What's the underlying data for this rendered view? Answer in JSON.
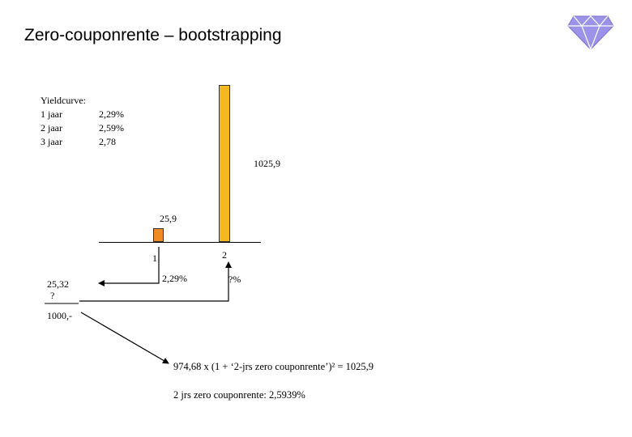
{
  "title": "Zero-couponrente – bootstrapping",
  "yieldcurve": {
    "label": "Yieldcurve:",
    "rows": [
      {
        "term": "1 jaar",
        "rate": "2,29%"
      },
      {
        "term": "2 jaar",
        "rate": "2,59%"
      },
      {
        "term": "3 jaar",
        "rate": "2,78"
      }
    ]
  },
  "cashflows": {
    "t1_value": "25,9",
    "t2_value": "1025,9",
    "t1_label": "1",
    "t2_label": "2",
    "rate_1": "2,29%",
    "rate_2": "?%",
    "pv_1": "25,32",
    "pv_1_unknown": "?",
    "price": "1000,-"
  },
  "equation": "974,68 x (1 + ‘2-jrs zero couponrente’)² = 1025,9",
  "result": "2 jrs zero couponrente: 2,5939%",
  "colors": {
    "bar_t1": "#F08A24",
    "bar_t2": "#F5B820",
    "gem": "#9C93E8"
  }
}
